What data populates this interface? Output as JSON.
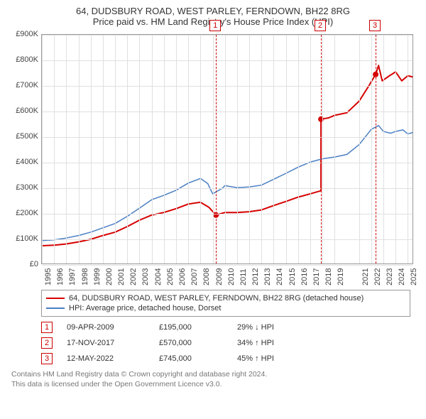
{
  "title": {
    "line1": "64, DUDSBURY ROAD, WEST PARLEY, FERNDOWN, BH22 8RG",
    "line2": "Price paid vs. HM Land Registry's House Price Index (HPI)"
  },
  "chart": {
    "type": "line",
    "background_color": "#ffffff",
    "grid_color": "#e0e0e0",
    "axis_color": "#999999",
    "label_fontsize": 11,
    "label_color": "#444444",
    "x": {
      "min": 1995,
      "max": 2025.5,
      "ticks": [
        1995,
        1996,
        1997,
        1998,
        1999,
        2000,
        2001,
        2002,
        2003,
        2004,
        2005,
        2006,
        2007,
        2008,
        2009,
        2010,
        2011,
        2012,
        2013,
        2014,
        2015,
        2016,
        2017,
        2018,
        2019,
        2021,
        2022,
        2023,
        2024,
        2025
      ]
    },
    "y": {
      "min": 0,
      "max": 900000,
      "ticks": [
        0,
        100000,
        200000,
        300000,
        400000,
        500000,
        600000,
        700000,
        800000,
        900000
      ],
      "tick_labels": [
        "£0",
        "£100K",
        "£200K",
        "£300K",
        "£400K",
        "£500K",
        "£600K",
        "£700K",
        "£800K",
        "£900K"
      ]
    },
    "series": [
      {
        "id": "property",
        "label": "64, DUDSBURY ROAD, WEST PARLEY, FERNDOWN, BH22 8RG (detached house)",
        "color": "#d60000",
        "line_width": 2,
        "points": [
          [
            1995,
            75000
          ],
          [
            1996,
            77000
          ],
          [
            1997,
            82000
          ],
          [
            1998,
            90000
          ],
          [
            1999,
            100000
          ],
          [
            2000,
            115000
          ],
          [
            2001,
            128000
          ],
          [
            2002,
            150000
          ],
          [
            2003,
            175000
          ],
          [
            2004,
            195000
          ],
          [
            2005,
            205000
          ],
          [
            2006,
            220000
          ],
          [
            2007,
            238000
          ],
          [
            2008,
            245000
          ],
          [
            2008.7,
            225000
          ],
          [
            2009.27,
            195000
          ],
          [
            2010,
            205000
          ],
          [
            2011,
            205000
          ],
          [
            2012,
            208000
          ],
          [
            2013,
            215000
          ],
          [
            2014,
            232000
          ],
          [
            2015,
            248000
          ],
          [
            2016,
            265000
          ],
          [
            2017,
            278000
          ],
          [
            2017.88,
            290000
          ],
          [
            2017.88,
            570000
          ],
          [
            2018.5,
            575000
          ],
          [
            2019,
            585000
          ],
          [
            2020,
            595000
          ],
          [
            2021,
            640000
          ],
          [
            2021.8,
            700000
          ],
          [
            2022.36,
            745000
          ],
          [
            2022.6,
            780000
          ],
          [
            2022.9,
            720000
          ],
          [
            2023.5,
            740000
          ],
          [
            2024,
            755000
          ],
          [
            2024.5,
            720000
          ],
          [
            2025,
            740000
          ],
          [
            2025.4,
            735000
          ]
        ],
        "sale_dots": [
          {
            "x": 2009.27,
            "y": 195000
          },
          {
            "x": 2017.88,
            "y": 570000
          },
          {
            "x": 2022.36,
            "y": 745000
          }
        ]
      },
      {
        "id": "hpi",
        "label": "HPI: Average price, detached house, Dorset",
        "color": "#4a7fc4",
        "line_width": 1.5,
        "points": [
          [
            1995,
            95000
          ],
          [
            1996,
            98000
          ],
          [
            1997,
            105000
          ],
          [
            1998,
            115000
          ],
          [
            1999,
            128000
          ],
          [
            2000,
            145000
          ],
          [
            2001,
            162000
          ],
          [
            2002,
            190000
          ],
          [
            2003,
            222000
          ],
          [
            2004,
            255000
          ],
          [
            2005,
            272000
          ],
          [
            2006,
            292000
          ],
          [
            2007,
            320000
          ],
          [
            2008,
            338000
          ],
          [
            2008.6,
            318000
          ],
          [
            2009,
            278000
          ],
          [
            2009.8,
            300000
          ],
          [
            2010,
            310000
          ],
          [
            2011,
            302000
          ],
          [
            2012,
            305000
          ],
          [
            2013,
            312000
          ],
          [
            2014,
            335000
          ],
          [
            2015,
            358000
          ],
          [
            2016,
            382000
          ],
          [
            2017,
            402000
          ],
          [
            2018,
            415000
          ],
          [
            2019,
            422000
          ],
          [
            2020,
            432000
          ],
          [
            2021,
            470000
          ],
          [
            2022,
            530000
          ],
          [
            2022.6,
            545000
          ],
          [
            2023,
            522000
          ],
          [
            2023.6,
            515000
          ],
          [
            2024,
            522000
          ],
          [
            2024.6,
            528000
          ],
          [
            2025,
            512000
          ],
          [
            2025.4,
            518000
          ]
        ]
      }
    ],
    "markers": [
      {
        "num": "1",
        "x": 2009.27
      },
      {
        "num": "2",
        "x": 2017.88
      },
      {
        "num": "3",
        "x": 2022.36
      }
    ],
    "marker_color": "#cc0000"
  },
  "legend": {
    "items": [
      {
        "color": "#d60000",
        "text": "64, DUDSBURY ROAD, WEST PARLEY, FERNDOWN, BH22 8RG (detached house)"
      },
      {
        "color": "#4a7fc4",
        "text": "HPI: Average price, detached house, Dorset"
      }
    ]
  },
  "transactions": [
    {
      "num": "1",
      "date": "09-APR-2009",
      "price": "£195,000",
      "delta": "29% ↓ HPI"
    },
    {
      "num": "2",
      "date": "17-NOV-2017",
      "price": "£570,000",
      "delta": "34% ↑ HPI"
    },
    {
      "num": "3",
      "date": "12-MAY-2022",
      "price": "£745,000",
      "delta": "45% ↑ HPI"
    }
  ],
  "footer": {
    "line1": "Contains HM Land Registry data © Crown copyright and database right 2024.",
    "line2": "This data is licensed under the Open Government Licence v3.0."
  }
}
